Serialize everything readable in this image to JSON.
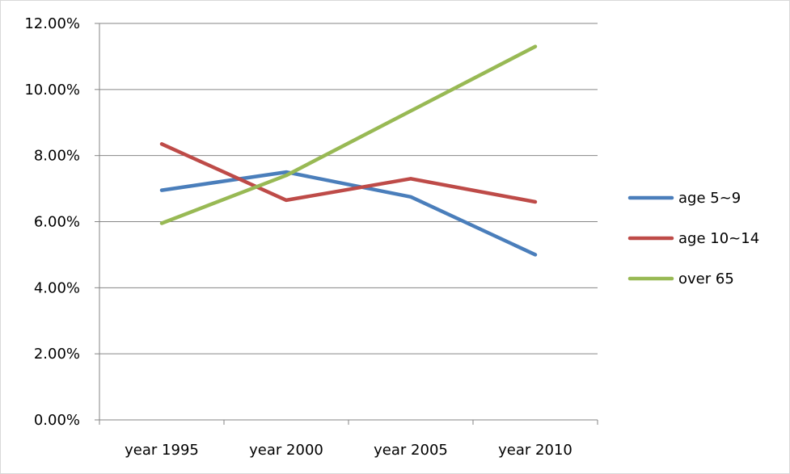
{
  "chart_data": {
    "type": "line",
    "title": "",
    "xlabel": "",
    "ylabel": "",
    "categories": [
      "year 1995",
      "year 2000",
      "year 2005",
      "year 2010"
    ],
    "ylim": [
      0,
      12
    ],
    "yticks": [
      0,
      2,
      4,
      6,
      8,
      10,
      12
    ],
    "ytick_labels": [
      "0.00%",
      "2.00%",
      "4.00%",
      "6.00%",
      "8.00%",
      "10.00%",
      "12.00%"
    ],
    "grid": true,
    "legend_position": "right",
    "series": [
      {
        "name": "age 5~9",
        "color": "#4a7ebb",
        "values": [
          6.95,
          7.5,
          6.75,
          5.0
        ]
      },
      {
        "name": "age 10~14",
        "color": "#be4b48",
        "values": [
          8.35,
          6.65,
          7.3,
          6.6
        ]
      },
      {
        "name": "over 65",
        "color": "#98b954",
        "values": [
          5.95,
          7.4,
          9.35,
          11.3
        ]
      }
    ]
  }
}
